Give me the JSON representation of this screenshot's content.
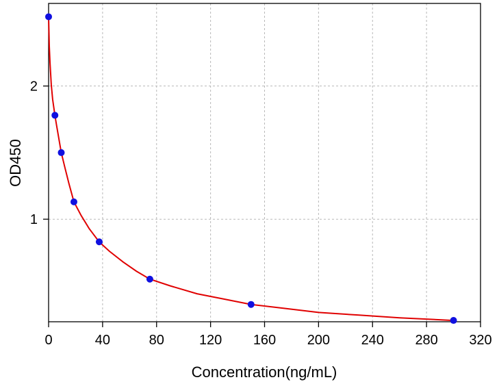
{
  "chart_data": {
    "type": "scatter",
    "xlabel": "Concentration(ng/mL)",
    "ylabel": "OD450",
    "xlim": [
      0,
      320
    ],
    "ylim": [
      0.23,
      2.62
    ],
    "xticks": [
      0,
      40,
      80,
      120,
      160,
      200,
      240,
      280,
      320
    ],
    "yticks": [
      1,
      2
    ],
    "grid": true,
    "series": [
      {
        "kind": "points",
        "x": [
          0,
          4.69,
          9.38,
          18.75,
          37.5,
          75,
          150,
          300
        ],
        "y": [
          2.52,
          1.78,
          1.5,
          1.13,
          0.83,
          0.55,
          0.36,
          0.24
        ]
      },
      {
        "kind": "fit-curve",
        "x": [
          0,
          0.5,
          1,
          2,
          3,
          4.69,
          6,
          9.38,
          12,
          15,
          18.75,
          24,
          30,
          37.5,
          45,
          55,
          65,
          75,
          90,
          110,
          130,
          150,
          175,
          200,
          230,
          260,
          300
        ],
        "y": [
          2.52,
          2.3,
          2.18,
          2.01,
          1.9,
          1.78,
          1.7,
          1.5,
          1.39,
          1.27,
          1.13,
          1.03,
          0.93,
          0.83,
          0.76,
          0.68,
          0.61,
          0.55,
          0.5,
          0.44,
          0.4,
          0.36,
          0.33,
          0.3,
          0.28,
          0.26,
          0.24
        ]
      }
    ],
    "colors": {
      "points": "#1010e0",
      "curve": "#e00000",
      "grid": "#b8b8b8",
      "axis": "#000000"
    }
  }
}
